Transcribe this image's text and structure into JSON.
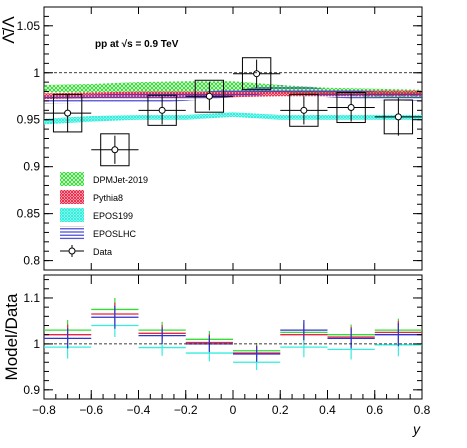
{
  "chart_data": [
    {
      "type": "line",
      "ylabel": "Λ̄/Λ",
      "annotation": "pp at √s = 0.9 TeV",
      "ylim": [
        0.79,
        1.07
      ],
      "xlim": [
        -0.8,
        0.8
      ],
      "yticks": [
        0.8,
        0.85,
        0.9,
        0.95,
        1,
        1.05
      ],
      "ytick_labels": [
        "0.8",
        "0.85",
        "0.9",
        "0.95",
        "1",
        "1.05"
      ],
      "reference_line": 1,
      "legend_position": "bottom-left",
      "series": [
        {
          "name": "DPMJet-2019",
          "color": "#33dd33",
          "x": [
            -0.8,
            -0.6,
            -0.4,
            -0.2,
            0.0,
            0.2,
            0.4,
            0.6,
            0.8
          ],
          "low": [
            0.979,
            0.979,
            0.98,
            0.98,
            0.981,
            0.979,
            0.976,
            0.974,
            0.973
          ],
          "high": [
            0.987,
            0.988,
            0.99,
            0.991,
            0.991,
            0.987,
            0.984,
            0.983,
            0.982
          ]
        },
        {
          "name": "Pythia8",
          "color": "#ee2244",
          "x": [
            -0.8,
            -0.6,
            -0.4,
            -0.2,
            0.0,
            0.2,
            0.4,
            0.6,
            0.8
          ],
          "low": [
            0.972,
            0.973,
            0.974,
            0.974,
            0.974,
            0.975,
            0.975,
            0.975,
            0.975
          ],
          "high": [
            0.978,
            0.979,
            0.98,
            0.98,
            0.98,
            0.981,
            0.981,
            0.981,
            0.981
          ]
        },
        {
          "name": "EPOS199",
          "color": "#33eedd",
          "x": [
            -0.8,
            -0.6,
            -0.4,
            -0.2,
            0.0,
            0.2,
            0.4,
            0.6,
            0.8
          ],
          "low": [
            0.945,
            0.948,
            0.95,
            0.95,
            0.953,
            0.95,
            0.95,
            0.95,
            0.95
          ],
          "high": [
            0.951,
            0.954,
            0.955,
            0.955,
            0.958,
            0.955,
            0.955,
            0.955,
            0.955
          ]
        },
        {
          "name": "EPOSLHC",
          "color": "#3333cc",
          "x": [
            -0.8,
            -0.6,
            -0.4,
            -0.2,
            0.0,
            0.2,
            0.4,
            0.6,
            0.8
          ],
          "low": [
            0.967,
            0.968,
            0.968,
            0.97,
            0.974,
            0.979,
            0.974,
            0.971,
            0.97
          ],
          "high": [
            0.976,
            0.977,
            0.978,
            0.979,
            0.982,
            0.987,
            0.983,
            0.98,
            0.979
          ]
        }
      ],
      "data_series": {
        "name": "Data",
        "x": [
          -0.7,
          -0.5,
          -0.3,
          -0.1,
          0.1,
          0.3,
          0.5,
          0.7
        ],
        "xerr": 0.1,
        "y": [
          0.957,
          0.918,
          0.96,
          0.975,
          0.999,
          0.96,
          0.963,
          0.953
        ],
        "stat_err": [
          0.02,
          0.015,
          0.015,
          0.015,
          0.015,
          0.015,
          0.015,
          0.02
        ],
        "syst_err": [
          0.02,
          0.017,
          0.016,
          0.017,
          0.017,
          0.017,
          0.016,
          0.018
        ],
        "syst_halfwidth": 0.06
      }
    },
    {
      "type": "line",
      "ylabel": "Model/Data",
      "xlabel": "y",
      "ylim": [
        0.88,
        1.15
      ],
      "xlim": [
        -0.8,
        0.8
      ],
      "yticks": [
        0.9,
        1,
        1.1
      ],
      "ytick_labels": [
        "0.9",
        "1",
        "1.1"
      ],
      "xticks": [
        -0.8,
        -0.6,
        -0.4,
        -0.2,
        0,
        0.2,
        0.4,
        0.6,
        0.8
      ],
      "xtick_labels": [
        "−0.8",
        "−0.6",
        "−0.4",
        "−0.2",
        "0",
        "0.2",
        "0.4",
        "0.6",
        "0.8"
      ],
      "reference_line": 1,
      "bins": [
        -0.7,
        -0.5,
        -0.3,
        -0.1,
        0.1,
        0.3,
        0.5,
        0.7
      ],
      "bin_halfwidth": 0.1,
      "series": [
        {
          "name": "DPMJet-2019",
          "color": "#33dd33",
          "values": [
            1.03,
            1.075,
            1.03,
            1.01,
            0.985,
            1.025,
            1.02,
            1.03
          ],
          "errors": [
            0.022,
            0.025,
            0.018,
            0.018,
            0.017,
            0.022,
            0.022,
            0.025
          ]
        },
        {
          "name": "Pythia8",
          "color": "#ee2244",
          "values": [
            1.02,
            1.065,
            1.023,
            1.003,
            0.98,
            1.02,
            1.015,
            1.025
          ],
          "errors": [
            0.022,
            0.025,
            0.018,
            0.018,
            0.017,
            0.022,
            0.022,
            0.025
          ]
        },
        {
          "name": "EPOS199",
          "color": "#33eedd",
          "values": [
            0.993,
            1.04,
            0.992,
            0.98,
            0.96,
            0.993,
            0.988,
            0.998
          ],
          "errors": [
            0.025,
            0.025,
            0.018,
            0.018,
            0.017,
            0.022,
            0.022,
            0.025
          ]
        },
        {
          "name": "EPOSLHC",
          "color": "#3333cc",
          "values": [
            1.012,
            1.058,
            1.018,
            1.0,
            0.978,
            1.03,
            1.012,
            1.02
          ],
          "errors": [
            0.022,
            0.025,
            0.018,
            0.018,
            0.017,
            0.022,
            0.022,
            0.025
          ]
        }
      ]
    }
  ]
}
